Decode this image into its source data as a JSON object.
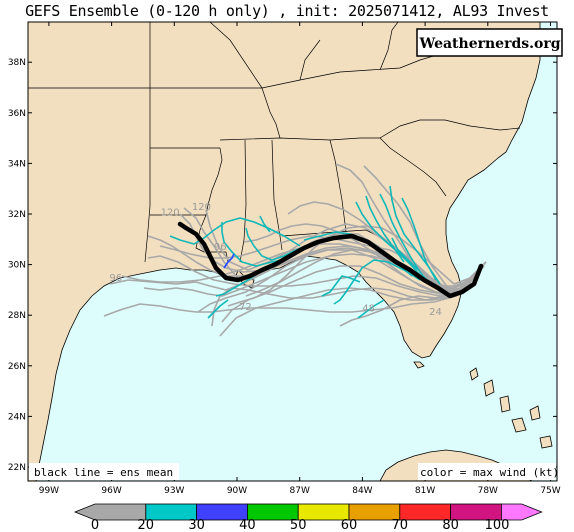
{
  "title": "GEFS Ensemble (0-120 h only) , init: 2025071412, AL93 Invest",
  "watermark": "Weathernerds.org",
  "notes": {
    "left": "black line = ens mean",
    "right": "color = max wind (kt)"
  },
  "axes": {
    "lat_labels": [
      "38N",
      "36N",
      "34N",
      "32N",
      "30N",
      "28N",
      "26N",
      "24N",
      "22N"
    ],
    "lon_labels": [
      "99W",
      "96W",
      "93W",
      "90W",
      "87W",
      "84W",
      "81W",
      "78W",
      "75W"
    ]
  },
  "colorbar": {
    "ticks": [
      "0",
      "20",
      "30",
      "40",
      "50",
      "60",
      "70",
      "80",
      "100"
    ],
    "colors": [
      "#a8a8a8",
      "#00c8c8",
      "#4040ff",
      "#00c800",
      "#e8e800",
      "#e8a000",
      "#ff2828",
      "#d01480",
      "#ff78ff"
    ]
  },
  "track_labels": [
    {
      "text": "120",
      "lon": -93.2,
      "lat": 31.95
    },
    {
      "text": "120",
      "lon": -91.7,
      "lat": 32.15
    },
    {
      "text": "96",
      "lon": -90.8,
      "lat": 30.58
    },
    {
      "text": "96",
      "lon": -95.8,
      "lat": 29.35
    },
    {
      "text": "72",
      "lon": -89.6,
      "lat": 28.2
    },
    {
      "text": "48",
      "lon": -83.7,
      "lat": 28.15
    },
    {
      "text": "24",
      "lon": -80.5,
      "lat": 28.0
    }
  ],
  "colors": {
    "land": "#f2dfc0",
    "ocean": "#ddfcfc",
    "member_gray": "#a8a8a8",
    "member_cyan": "#10b8b8",
    "member_blue": "#2850ff",
    "mean": "#000000"
  }
}
